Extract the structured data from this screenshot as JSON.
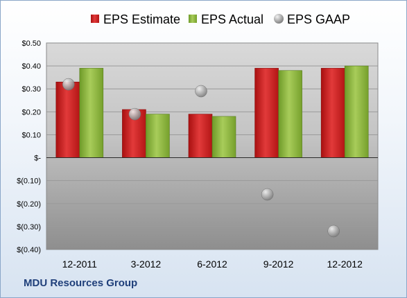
{
  "chart_data": {
    "type": "bar",
    "title": "",
    "xlabel": "",
    "ylabel": "",
    "categories": [
      "12-2011",
      "3-2012",
      "6-2012",
      "9-2012",
      "12-2012"
    ],
    "series": [
      {
        "name": "EPS Estimate",
        "type": "bar",
        "values": [
          0.33,
          0.21,
          0.19,
          0.39,
          0.39
        ],
        "color": "#cc1f1f"
      },
      {
        "name": "EPS Actual",
        "type": "bar",
        "values": [
          0.39,
          0.19,
          0.18,
          0.38,
          0.4
        ],
        "color": "#8db43a"
      },
      {
        "name": "EPS GAAP",
        "type": "scatter",
        "values": [
          0.32,
          0.19,
          0.29,
          -0.16,
          -0.32
        ],
        "color": "#a0a0a0"
      }
    ],
    "ylim": [
      -0.4,
      0.5
    ],
    "yticks": [
      0.5,
      0.4,
      0.3,
      0.2,
      0.1,
      0.0,
      -0.1,
      -0.2,
      -0.3,
      -0.4
    ],
    "ytick_labels": [
      "$0.50",
      "$0.40",
      "$0.30",
      "$0.20",
      "$0.10",
      "$-",
      "$(0.10)",
      "$(0.20)",
      "$(0.30)",
      "$(0.40)"
    ],
    "grid": true,
    "legend_position": "top"
  },
  "footer": {
    "brand": "MDU Resources Group"
  }
}
